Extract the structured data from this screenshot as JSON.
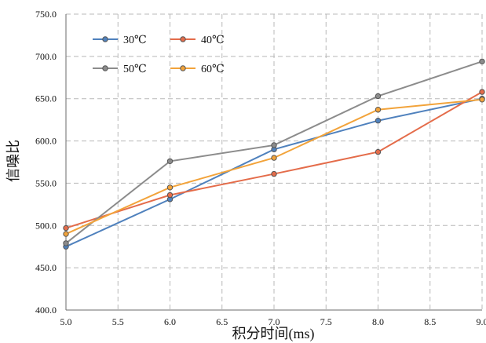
{
  "chart_data": {
    "type": "line",
    "x": [
      5.0,
      6.0,
      7.0,
      8.0,
      9.0
    ],
    "series": [
      {
        "name": "30℃",
        "color": "#4F81BD",
        "values": [
          475,
          531,
          590,
          624,
          650
        ]
      },
      {
        "name": "40℃",
        "color": "#E46C4A",
        "values": [
          497,
          536,
          561,
          587,
          658
        ]
      },
      {
        "name": "50℃",
        "color": "#8C8C8C",
        "values": [
          479,
          576,
          595,
          653,
          694
        ]
      },
      {
        "name": "60℃",
        "color": "#F2A33A",
        "values": [
          490,
          545,
          580,
          637,
          649
        ]
      }
    ],
    "xlabel": "积分时间(ms)",
    "ylabel": "信噪比",
    "xlim": [
      5.0,
      9.0
    ],
    "ylim": [
      400.0,
      750.0
    ],
    "xticks": [
      "5.0",
      "5.5",
      "6.0",
      "6.5",
      "7.0",
      "7.5",
      "8.0",
      "8.5",
      "9.0"
    ],
    "yticks": [
      "400.0",
      "450.0",
      "500.0",
      "550.0",
      "600.0",
      "650.0",
      "700.0",
      "750.0"
    ],
    "grid": true,
    "legend_position": "top-left"
  }
}
